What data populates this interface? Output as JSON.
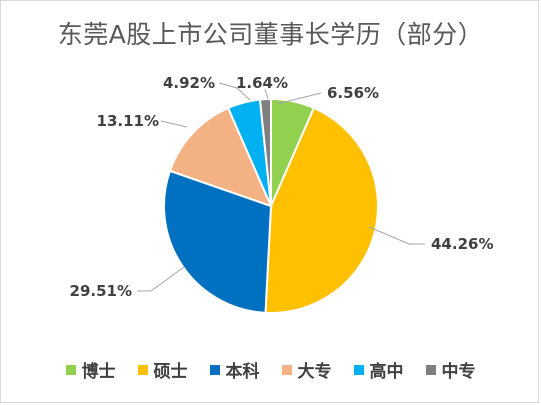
{
  "chart_data": {
    "type": "pie",
    "title": "东莞A股上市公司董事长学历（部分）",
    "categories": [
      "博士",
      "硕士",
      "本科",
      "大专",
      "高中",
      "中专"
    ],
    "values": [
      6.56,
      44.26,
      29.51,
      13.11,
      4.92,
      1.64
    ],
    "labels": [
      "6.56%",
      "44.26%",
      "29.51%",
      "13.11%",
      "4.92%",
      "1.64%"
    ],
    "colors": [
      "#92d050",
      "#ffc000",
      "#0070c0",
      "#f4b183",
      "#00b0f0",
      "#7f7f7f"
    ],
    "legend_position": "bottom",
    "start_angle": "12 o'clock, clockwise"
  }
}
